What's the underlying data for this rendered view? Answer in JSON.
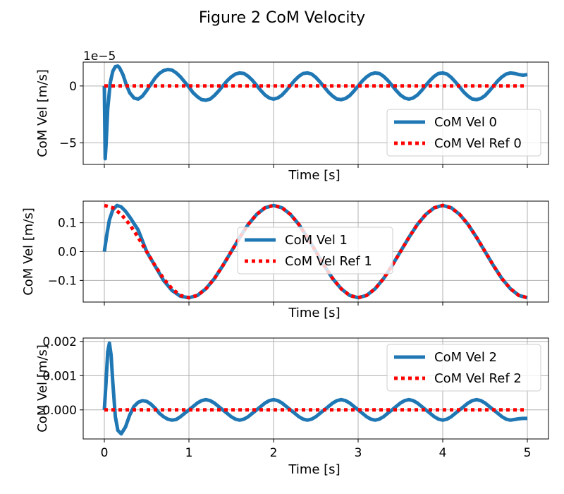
{
  "figure": {
    "title": "Figure 2 CoM Velocity"
  },
  "chart_data": [
    {
      "type": "line",
      "title": "",
      "xlabel": "Time [s]",
      "ylabel": "CoM Vel [m/s]",
      "offset_label": "1e−5",
      "xlim": [
        -0.25,
        5.25
      ],
      "ylim": [
        -6.9,
        2.1
      ],
      "x_ticks": [
        0,
        1,
        2,
        3,
        4,
        5
      ],
      "x_tick_labels": [
        "",
        "",
        "",
        "",
        "",
        ""
      ],
      "y_ticks": [
        0,
        -5
      ],
      "y_tick_labels": [
        "0",
        "−5"
      ],
      "grid": true,
      "legend_position": "lower-right",
      "series": [
        {
          "name": "CoM Vel 0",
          "color": "#1f77b4",
          "style": "solid",
          "x": [
            0,
            0.01,
            0.02,
            0.04,
            0.07,
            0.1,
            0.13,
            0.16,
            0.18,
            0.22,
            0.26,
            0.3,
            0.35,
            0.4,
            0.45,
            0.5,
            0.55,
            0.6,
            0.65,
            0.7,
            0.75,
            0.8,
            0.85,
            0.9,
            0.95,
            1.0,
            1.05,
            1.1,
            1.15,
            1.2,
            1.25,
            1.3,
            1.35,
            1.4,
            1.45,
            1.5,
            1.55,
            1.6,
            1.65,
            1.7,
            1.75,
            1.8,
            1.85,
            1.9,
            1.95,
            2.0,
            2.05,
            2.1,
            2.15,
            2.2,
            2.25,
            2.3,
            2.35,
            2.4,
            2.45,
            2.5,
            2.55,
            2.6,
            2.65,
            2.7,
            2.75,
            2.8,
            2.85,
            2.9,
            2.95,
            3.0,
            3.05,
            3.1,
            3.15,
            3.2,
            3.25,
            3.3,
            3.35,
            3.4,
            3.45,
            3.5,
            3.55,
            3.6,
            3.65,
            3.7,
            3.75,
            3.8,
            3.85,
            3.9,
            3.95,
            4.0,
            4.05,
            4.1,
            4.15,
            4.2,
            4.25,
            4.3,
            4.35,
            4.4,
            4.45,
            4.5,
            4.55,
            4.6,
            4.65,
            4.7,
            4.75,
            4.8,
            4.85,
            4.9,
            4.95,
            5.0
          ],
          "y": [
            0,
            -6.4,
            -5.2,
            -2.0,
            0.3,
            1.3,
            1.7,
            1.75,
            1.6,
            1.0,
            0.1,
            -0.6,
            -1.05,
            -1.15,
            -0.9,
            -0.4,
            0.15,
            0.7,
            1.1,
            1.35,
            1.45,
            1.4,
            1.15,
            0.8,
            0.35,
            -0.1,
            -0.6,
            -0.95,
            -1.2,
            -1.25,
            -1.15,
            -0.85,
            -0.45,
            0.0,
            0.45,
            0.8,
            1.05,
            1.15,
            1.1,
            0.85,
            0.5,
            0.05,
            -0.4,
            -0.8,
            -1.05,
            -1.15,
            -1.05,
            -0.8,
            -0.4,
            0.05,
            0.5,
            0.85,
            1.1,
            1.15,
            1.05,
            0.75,
            0.35,
            -0.1,
            -0.55,
            -0.9,
            -1.15,
            -1.2,
            -1.1,
            -0.85,
            -0.45,
            0.0,
            0.45,
            0.8,
            1.05,
            1.15,
            1.1,
            0.85,
            0.5,
            0.05,
            -0.4,
            -0.8,
            -1.05,
            -1.15,
            -1.05,
            -0.8,
            -0.4,
            0.05,
            0.5,
            0.85,
            1.1,
            1.15,
            1.05,
            0.75,
            0.35,
            -0.1,
            -0.55,
            -0.9,
            -1.15,
            -1.2,
            -1.1,
            -0.85,
            -0.45,
            0.0,
            0.45,
            0.8,
            1.05,
            1.15,
            1.1,
            1.0,
            0.95,
            1.0
          ]
        },
        {
          "name": "CoM Vel Ref 0",
          "color": "#ff0000",
          "style": "dotted",
          "x": [
            0,
            5
          ],
          "y": [
            0,
            0
          ]
        }
      ]
    },
    {
      "type": "line",
      "title": "",
      "xlabel": "Time [s]",
      "ylabel": "CoM Vel [m/s]",
      "xlim": [
        -0.25,
        5.25
      ],
      "ylim": [
        -0.175,
        0.175
      ],
      "x_ticks": [
        0,
        1,
        2,
        3,
        4,
        5
      ],
      "x_tick_labels": [
        "",
        "",
        "",
        "",
        "",
        ""
      ],
      "y_ticks": [
        0.1,
        0.0,
        -0.1
      ],
      "y_tick_labels": [
        "0.1",
        "0.0",
        "−0.1"
      ],
      "grid": true,
      "legend_position": "center",
      "series": [
        {
          "name": "CoM Vel 1",
          "color": "#1f77b4",
          "style": "solid",
          "x": [
            0,
            0.03,
            0.06,
            0.1,
            0.15,
            0.2,
            0.25,
            0.3,
            0.4,
            0.5,
            0.6,
            0.7,
            0.8,
            0.9,
            1.0,
            1.1,
            1.2,
            1.3,
            1.4,
            1.5,
            1.6,
            1.7,
            1.8,
            1.9,
            2.0,
            2.1,
            2.2,
            2.3,
            2.4,
            2.5,
            2.6,
            2.7,
            2.8,
            2.9,
            3.0,
            3.1,
            3.2,
            3.3,
            3.4,
            3.5,
            3.6,
            3.7,
            3.8,
            3.9,
            4.0,
            4.1,
            4.2,
            4.3,
            4.4,
            4.5,
            4.6,
            4.7,
            4.8,
            4.9,
            5.0
          ],
          "y": [
            0.0,
            0.06,
            0.11,
            0.145,
            0.16,
            0.155,
            0.14,
            0.12,
            0.075,
            0.0,
            -0.05,
            -0.1,
            -0.135,
            -0.155,
            -0.16,
            -0.152,
            -0.129,
            -0.094,
            -0.049,
            0.0,
            0.049,
            0.094,
            0.129,
            0.152,
            0.16,
            0.152,
            0.129,
            0.094,
            0.049,
            0.0,
            -0.049,
            -0.094,
            -0.129,
            -0.152,
            -0.16,
            -0.152,
            -0.129,
            -0.094,
            -0.049,
            0.0,
            0.049,
            0.094,
            0.129,
            0.152,
            0.16,
            0.152,
            0.129,
            0.094,
            0.049,
            0.0,
            -0.049,
            -0.094,
            -0.129,
            -0.152,
            -0.16
          ]
        },
        {
          "name": "CoM Vel Ref 1",
          "color": "#ff0000",
          "style": "dotted",
          "x": [
            0,
            0.1,
            0.2,
            0.3,
            0.4,
            0.5,
            0.6,
            0.7,
            0.8,
            0.9,
            1.0,
            1.1,
            1.2,
            1.3,
            1.4,
            1.5,
            1.6,
            1.7,
            1.8,
            1.9,
            2.0,
            2.1,
            2.2,
            2.3,
            2.4,
            2.5,
            2.6,
            2.7,
            2.8,
            2.9,
            3.0,
            3.1,
            3.2,
            3.3,
            3.4,
            3.5,
            3.6,
            3.7,
            3.8,
            3.9,
            4.0,
            4.1,
            4.2,
            4.3,
            4.4,
            4.5,
            4.6,
            4.7,
            4.8,
            4.9,
            5.0
          ],
          "y": [
            0.16,
            0.152,
            0.129,
            0.094,
            0.049,
            0.0,
            -0.049,
            -0.094,
            -0.129,
            -0.152,
            -0.16,
            -0.152,
            -0.129,
            -0.094,
            -0.049,
            0.0,
            0.049,
            0.094,
            0.129,
            0.152,
            0.16,
            0.152,
            0.129,
            0.094,
            0.049,
            0.0,
            -0.049,
            -0.094,
            -0.129,
            -0.152,
            -0.16,
            -0.152,
            -0.129,
            -0.094,
            -0.049,
            0.0,
            0.049,
            0.094,
            0.129,
            0.152,
            0.16,
            0.152,
            0.129,
            0.094,
            0.049,
            0.0,
            -0.049,
            -0.094,
            -0.129,
            -0.152,
            -0.16
          ]
        }
      ]
    },
    {
      "type": "line",
      "title": "",
      "xlabel": "Time [s]",
      "ylabel": "CoM Vel [m/s]",
      "xlim": [
        -0.25,
        5.25
      ],
      "ylim": [
        -0.00085,
        0.0021
      ],
      "x_ticks": [
        0,
        1,
        2,
        3,
        4,
        5
      ],
      "x_tick_labels": [
        "0",
        "1",
        "2",
        "3",
        "4",
        "5"
      ],
      "y_ticks": [
        0.002,
        0.001,
        0.0
      ],
      "y_tick_labels": [
        "0.002",
        "0.001",
        "0.000"
      ],
      "grid": true,
      "legend_position": "upper-right",
      "series": [
        {
          "name": "CoM Vel 2",
          "color": "#1f77b4",
          "style": "solid",
          "x": [
            0,
            0.02,
            0.04,
            0.06,
            0.08,
            0.1,
            0.13,
            0.16,
            0.2,
            0.25,
            0.3,
            0.35,
            0.4,
            0.45,
            0.5,
            0.55,
            0.6,
            0.65,
            0.7,
            0.75,
            0.8,
            0.85,
            0.9,
            0.95,
            1.0,
            1.05,
            1.1,
            1.15,
            1.2,
            1.25,
            1.3,
            1.35,
            1.4,
            1.45,
            1.5,
            1.55,
            1.6,
            1.65,
            1.7,
            1.75,
            1.8,
            1.85,
            1.9,
            1.95,
            2.0,
            2.05,
            2.1,
            2.15,
            2.2,
            2.25,
            2.3,
            2.35,
            2.4,
            2.45,
            2.5,
            2.55,
            2.6,
            2.65,
            2.7,
            2.75,
            2.8,
            2.85,
            2.9,
            2.95,
            3.0,
            3.05,
            3.1,
            3.15,
            3.2,
            3.25,
            3.3,
            3.35,
            3.4,
            3.45,
            3.5,
            3.55,
            3.6,
            3.65,
            3.7,
            3.75,
            3.8,
            3.85,
            3.9,
            3.95,
            4.0,
            4.05,
            4.1,
            4.15,
            4.2,
            4.25,
            4.3,
            4.35,
            4.4,
            4.45,
            4.5,
            4.55,
            4.6,
            4.65,
            4.7,
            4.75,
            4.8,
            4.85,
            4.9,
            4.95,
            5.0
          ],
          "y": [
            0.0,
            0.0008,
            0.0017,
            0.00195,
            0.0016,
            0.0008,
            -0.0002,
            -0.0006,
            -0.0007,
            -0.0005,
            -0.00015,
            0.0001,
            0.00022,
            0.00027,
            0.00025,
            0.00017,
            5e-05,
            -0.0001,
            -0.0002,
            -0.00027,
            -0.0003,
            -0.00028,
            -0.0002,
            -0.0001,
            0.0,
            0.0001,
            0.0002,
            0.00027,
            0.0003,
            0.00027,
            0.0002,
            0.0001,
            0.0,
            -0.0001,
            -0.0002,
            -0.00027,
            -0.0003,
            -0.00027,
            -0.0002,
            -0.0001,
            0.0,
            0.0001,
            0.0002,
            0.00027,
            0.0003,
            0.00027,
            0.0002,
            0.0001,
            0.0,
            -0.0001,
            -0.0002,
            -0.00027,
            -0.0003,
            -0.00027,
            -0.0002,
            -0.0001,
            0.0,
            0.0001,
            0.0002,
            0.00027,
            0.0003,
            0.00027,
            0.0002,
            0.0001,
            0.0,
            -0.0001,
            -0.0002,
            -0.00027,
            -0.0003,
            -0.00027,
            -0.0002,
            -0.0001,
            0.0,
            0.0001,
            0.0002,
            0.00027,
            0.0003,
            0.00027,
            0.0002,
            0.0001,
            0.0,
            -0.0001,
            -0.0002,
            -0.00027,
            -0.0003,
            -0.00027,
            -0.0002,
            -0.0001,
            0.0,
            0.0001,
            0.0002,
            0.00027,
            0.0003,
            0.00027,
            0.0002,
            0.0001,
            0.0,
            -0.0001,
            -0.0002,
            -0.00027,
            -0.0003,
            -0.00028,
            -0.00026,
            -0.00025,
            -0.00025
          ]
        },
        {
          "name": "CoM Vel Ref 2",
          "color": "#ff0000",
          "style": "dotted",
          "x": [
            0,
            5
          ],
          "y": [
            0,
            0
          ]
        }
      ]
    }
  ]
}
